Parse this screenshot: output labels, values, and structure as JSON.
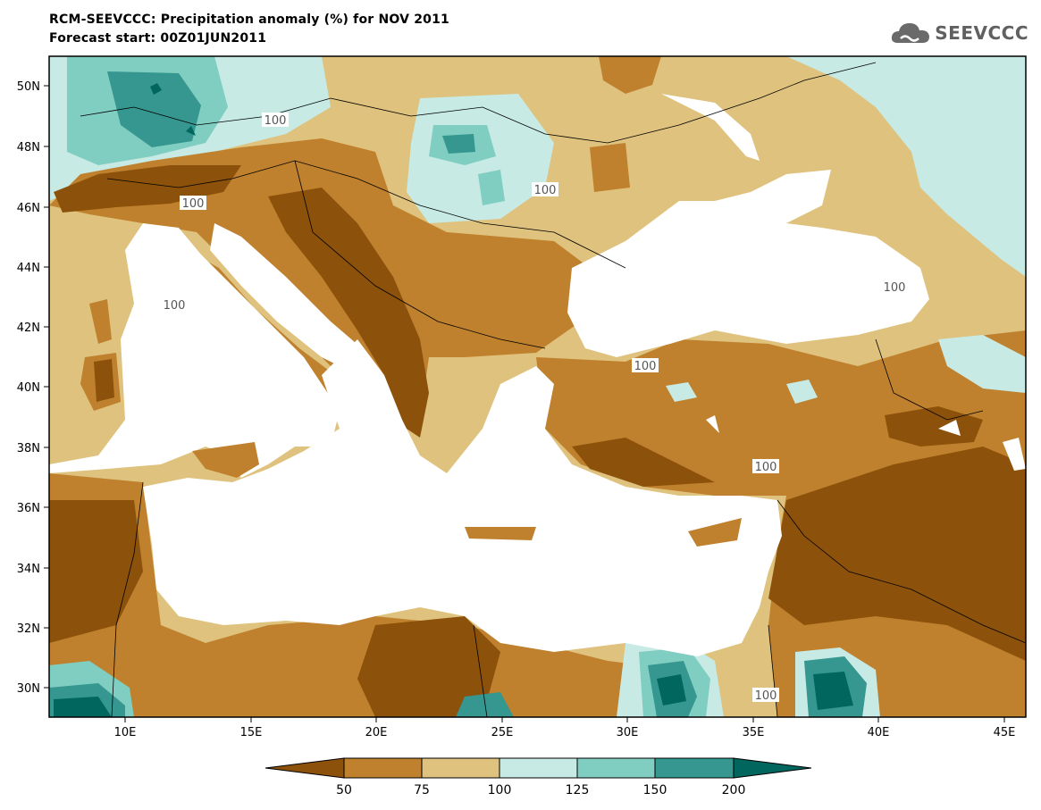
{
  "header": {
    "title": "RCM-SEEVCCC: Precipitation anomaly (%) for NOV 2011",
    "subtitle": "Forecast start: 00Z01JUN2011"
  },
  "logo": {
    "text": "SEEVCCC",
    "icon": "cloud-icon"
  },
  "map": {
    "lat_labels": [
      "50N",
      "48N",
      "46N",
      "44N",
      "42N",
      "40N",
      "38N",
      "36N",
      "34N",
      "32N",
      "30N"
    ],
    "lon_labels": [
      "10E",
      "15E",
      "20E",
      "25E",
      "30E",
      "35E",
      "40E",
      "45E"
    ],
    "contour_labels": [
      "100",
      "100",
      "100",
      "100",
      "100",
      "100",
      "100",
      "100"
    ]
  },
  "legend": {
    "labels": [
      "50",
      "75",
      "100",
      "125",
      "150",
      "200"
    ],
    "colors": {
      "lt50": "#8c510a",
      "50_75": "#bf812d",
      "75_100": "#dfc27d",
      "100_125": "#c7eae5",
      "125_150": "#80cdc1",
      "150_200": "#35978f",
      "gt200": "#01665e"
    }
  }
}
